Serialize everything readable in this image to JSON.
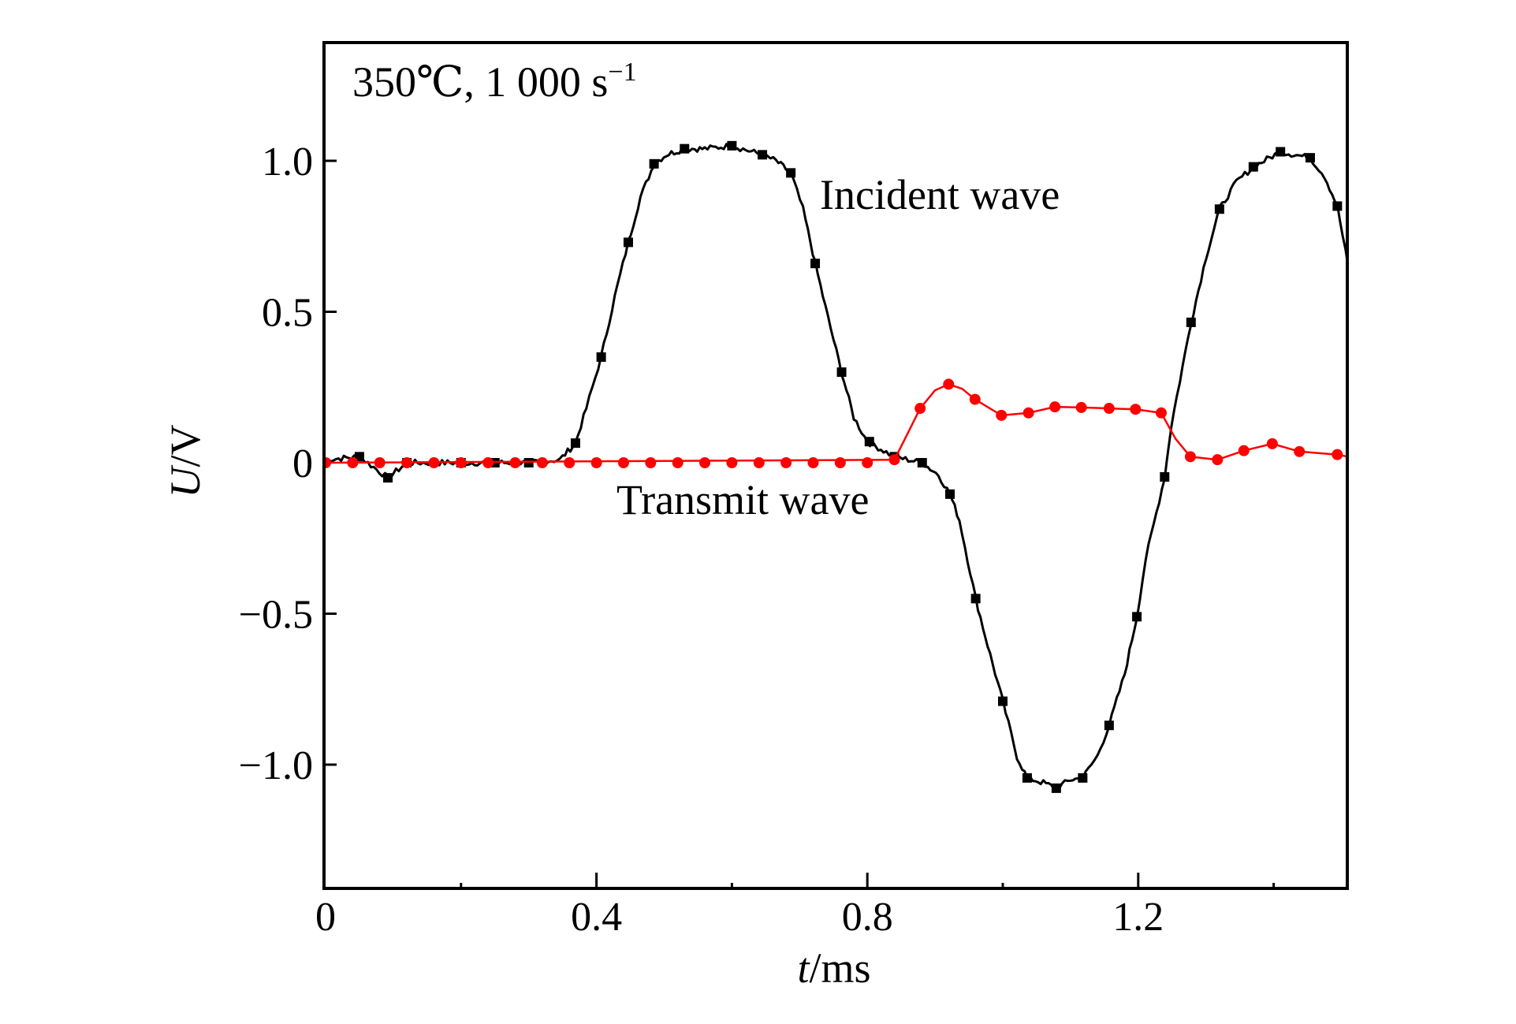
{
  "chart_data": {
    "type": "line",
    "title": "",
    "annotation": {
      "condition_text": "350℃, 1 000 s",
      "condition_superscript": "−1"
    },
    "xlabel": {
      "italic_part": "t",
      "rest": "/ms"
    },
    "ylabel": {
      "italic_part": "U",
      "rest": "/V"
    },
    "xlim": [
      0,
      1.51
    ],
    "ylim": [
      -1.41,
      1.39
    ],
    "x_ticks_major": [
      0,
      0.4,
      0.8,
      1.2
    ],
    "x_tick_labels": [
      "0",
      "0.4",
      "0.8",
      "1.2"
    ],
    "x_ticks_minor": [
      0.2,
      0.6,
      1.0,
      1.4
    ],
    "y_ticks_major": [
      -1.0,
      -0.5,
      0,
      0.5,
      1.0
    ],
    "y_tick_labels": [
      "−1.0",
      "−0.5",
      "0",
      "0.5",
      "1.0"
    ],
    "grid": false,
    "legend": "none (inline labels)",
    "series": [
      {
        "name": "Incident wave",
        "label_text": "Incident wave",
        "label_anchor": [
          0.73,
          0.88
        ],
        "color": "#000000",
        "marker": "square",
        "points": [
          [
            0.0,
            0.01
          ],
          [
            0.05,
            0.02
          ],
          [
            0.092,
            -0.05
          ],
          [
            0.12,
            0.0
          ],
          [
            0.2,
            0.0
          ],
          [
            0.3,
            0.0
          ],
          [
            0.346,
            0.01
          ],
          [
            0.369,
            0.065
          ],
          [
            0.385,
            0.18
          ],
          [
            0.407,
            0.35
          ],
          [
            0.427,
            0.55
          ],
          [
            0.447,
            0.73
          ],
          [
            0.465,
            0.88
          ],
          [
            0.485,
            0.99
          ],
          [
            0.503,
            1.02
          ],
          [
            0.53,
            1.04
          ],
          [
            0.56,
            1.04
          ],
          [
            0.6,
            1.05
          ],
          [
            0.645,
            1.02
          ],
          [
            0.665,
            1.0
          ],
          [
            0.687,
            0.96
          ],
          [
            0.705,
            0.84
          ],
          [
            0.723,
            0.66
          ],
          [
            0.742,
            0.48
          ],
          [
            0.762,
            0.3
          ],
          [
            0.78,
            0.15
          ],
          [
            0.8,
            0.07
          ],
          [
            0.84,
            0.02
          ],
          [
            0.881,
            0.0
          ],
          [
            0.905,
            -0.04
          ],
          [
            0.922,
            -0.104
          ],
          [
            0.936,
            -0.19
          ],
          [
            0.96,
            -0.45
          ],
          [
            0.974,
            -0.574
          ],
          [
            1.0,
            -0.79
          ],
          [
            1.021,
            -0.974
          ],
          [
            1.036,
            -1.044
          ],
          [
            1.06,
            -1.06
          ],
          [
            1.079,
            -1.078
          ],
          [
            1.1,
            -1.05
          ],
          [
            1.118,
            -1.044
          ],
          [
            1.14,
            -0.97
          ],
          [
            1.157,
            -0.87
          ],
          [
            1.18,
            -0.7
          ],
          [
            1.198,
            -0.51
          ],
          [
            1.211,
            -0.32
          ],
          [
            1.239,
            -0.047
          ],
          [
            1.249,
            0.125
          ],
          [
            1.278,
            0.465
          ],
          [
            1.3,
            0.68
          ],
          [
            1.32,
            0.84
          ],
          [
            1.345,
            0.93
          ],
          [
            1.37,
            0.98
          ],
          [
            1.41,
            1.03
          ],
          [
            1.454,
            1.01
          ],
          [
            1.475,
            0.95
          ],
          [
            1.494,
            0.85
          ],
          [
            1.51,
            0.65
          ]
        ],
        "marker_points": [
          [
            0.05,
            0.02
          ],
          [
            0.092,
            -0.05
          ],
          [
            0.12,
            0.0
          ],
          [
            0.2,
            0.0
          ],
          [
            0.25,
            0.0
          ],
          [
            0.3,
            0.0
          ],
          [
            0.369,
            0.065
          ],
          [
            0.407,
            0.35
          ],
          [
            0.447,
            0.73
          ],
          [
            0.485,
            0.99
          ],
          [
            0.53,
            1.04
          ],
          [
            0.6,
            1.05
          ],
          [
            0.645,
            1.02
          ],
          [
            0.687,
            0.96
          ],
          [
            0.723,
            0.66
          ],
          [
            0.762,
            0.3
          ],
          [
            0.803,
            0.07
          ],
          [
            0.84,
            0.02
          ],
          [
            0.881,
            0.0
          ],
          [
            0.922,
            -0.104
          ],
          [
            0.96,
            -0.45
          ],
          [
            1.0,
            -0.79
          ],
          [
            1.036,
            -1.044
          ],
          [
            1.079,
            -1.078
          ],
          [
            1.118,
            -1.044
          ],
          [
            1.157,
            -0.87
          ],
          [
            1.198,
            -0.51
          ],
          [
            1.239,
            -0.047
          ],
          [
            1.278,
            0.465
          ],
          [
            1.32,
            0.84
          ],
          [
            1.37,
            0.98
          ],
          [
            1.41,
            1.03
          ],
          [
            1.454,
            1.01
          ],
          [
            1.494,
            0.85
          ]
        ]
      },
      {
        "name": "Transmit wave",
        "label_text": "Transmit wave",
        "label_anchor": [
          0.43,
          -0.18
        ],
        "color": "#ff0000",
        "marker": "circle",
        "points": [
          [
            0.0,
            0.0
          ],
          [
            0.84,
            0.01
          ],
          [
            0.858,
            0.09
          ],
          [
            0.878,
            0.18
          ],
          [
            0.9,
            0.24
          ],
          [
            0.92,
            0.26
          ],
          [
            0.94,
            0.245
          ],
          [
            0.959,
            0.21
          ],
          [
            0.998,
            0.157
          ],
          [
            1.038,
            0.165
          ],
          [
            1.077,
            0.185
          ],
          [
            1.116,
            0.183
          ],
          [
            1.157,
            0.18
          ],
          [
            1.196,
            0.177
          ],
          [
            1.234,
            0.165
          ],
          [
            1.255,
            0.08
          ],
          [
            1.277,
            0.02
          ],
          [
            1.297,
            0.015
          ],
          [
            1.317,
            0.01
          ],
          [
            1.356,
            0.04
          ],
          [
            1.398,
            0.063
          ],
          [
            1.438,
            0.037
          ],
          [
            1.494,
            0.027
          ],
          [
            1.51,
            0.02
          ]
        ],
        "marker_points": [
          [
            0.0,
            0.0
          ],
          [
            0.04,
            0.0
          ],
          [
            0.08,
            0.0
          ],
          [
            0.12,
            0.0
          ],
          [
            0.16,
            0.0
          ],
          [
            0.2,
            0.0
          ],
          [
            0.24,
            0.0
          ],
          [
            0.28,
            0.0
          ],
          [
            0.32,
            0.0
          ],
          [
            0.36,
            0.0
          ],
          [
            0.4,
            0.0
          ],
          [
            0.44,
            0.0
          ],
          [
            0.48,
            0.0
          ],
          [
            0.52,
            0.0
          ],
          [
            0.56,
            0.0
          ],
          [
            0.6,
            0.0
          ],
          [
            0.64,
            0.0
          ],
          [
            0.68,
            0.0
          ],
          [
            0.72,
            0.0
          ],
          [
            0.76,
            0.0
          ],
          [
            0.8,
            0.0
          ],
          [
            0.84,
            0.01
          ],
          [
            0.878,
            0.18
          ],
          [
            0.92,
            0.26
          ],
          [
            0.959,
            0.21
          ],
          [
            0.998,
            0.157
          ],
          [
            1.038,
            0.165
          ],
          [
            1.077,
            0.185
          ],
          [
            1.116,
            0.183
          ],
          [
            1.157,
            0.18
          ],
          [
            1.196,
            0.177
          ],
          [
            1.234,
            0.165
          ],
          [
            1.277,
            0.02
          ],
          [
            1.317,
            0.01
          ],
          [
            1.356,
            0.04
          ],
          [
            1.398,
            0.063
          ],
          [
            1.438,
            0.037
          ],
          [
            1.494,
            0.027
          ]
        ]
      }
    ]
  }
}
